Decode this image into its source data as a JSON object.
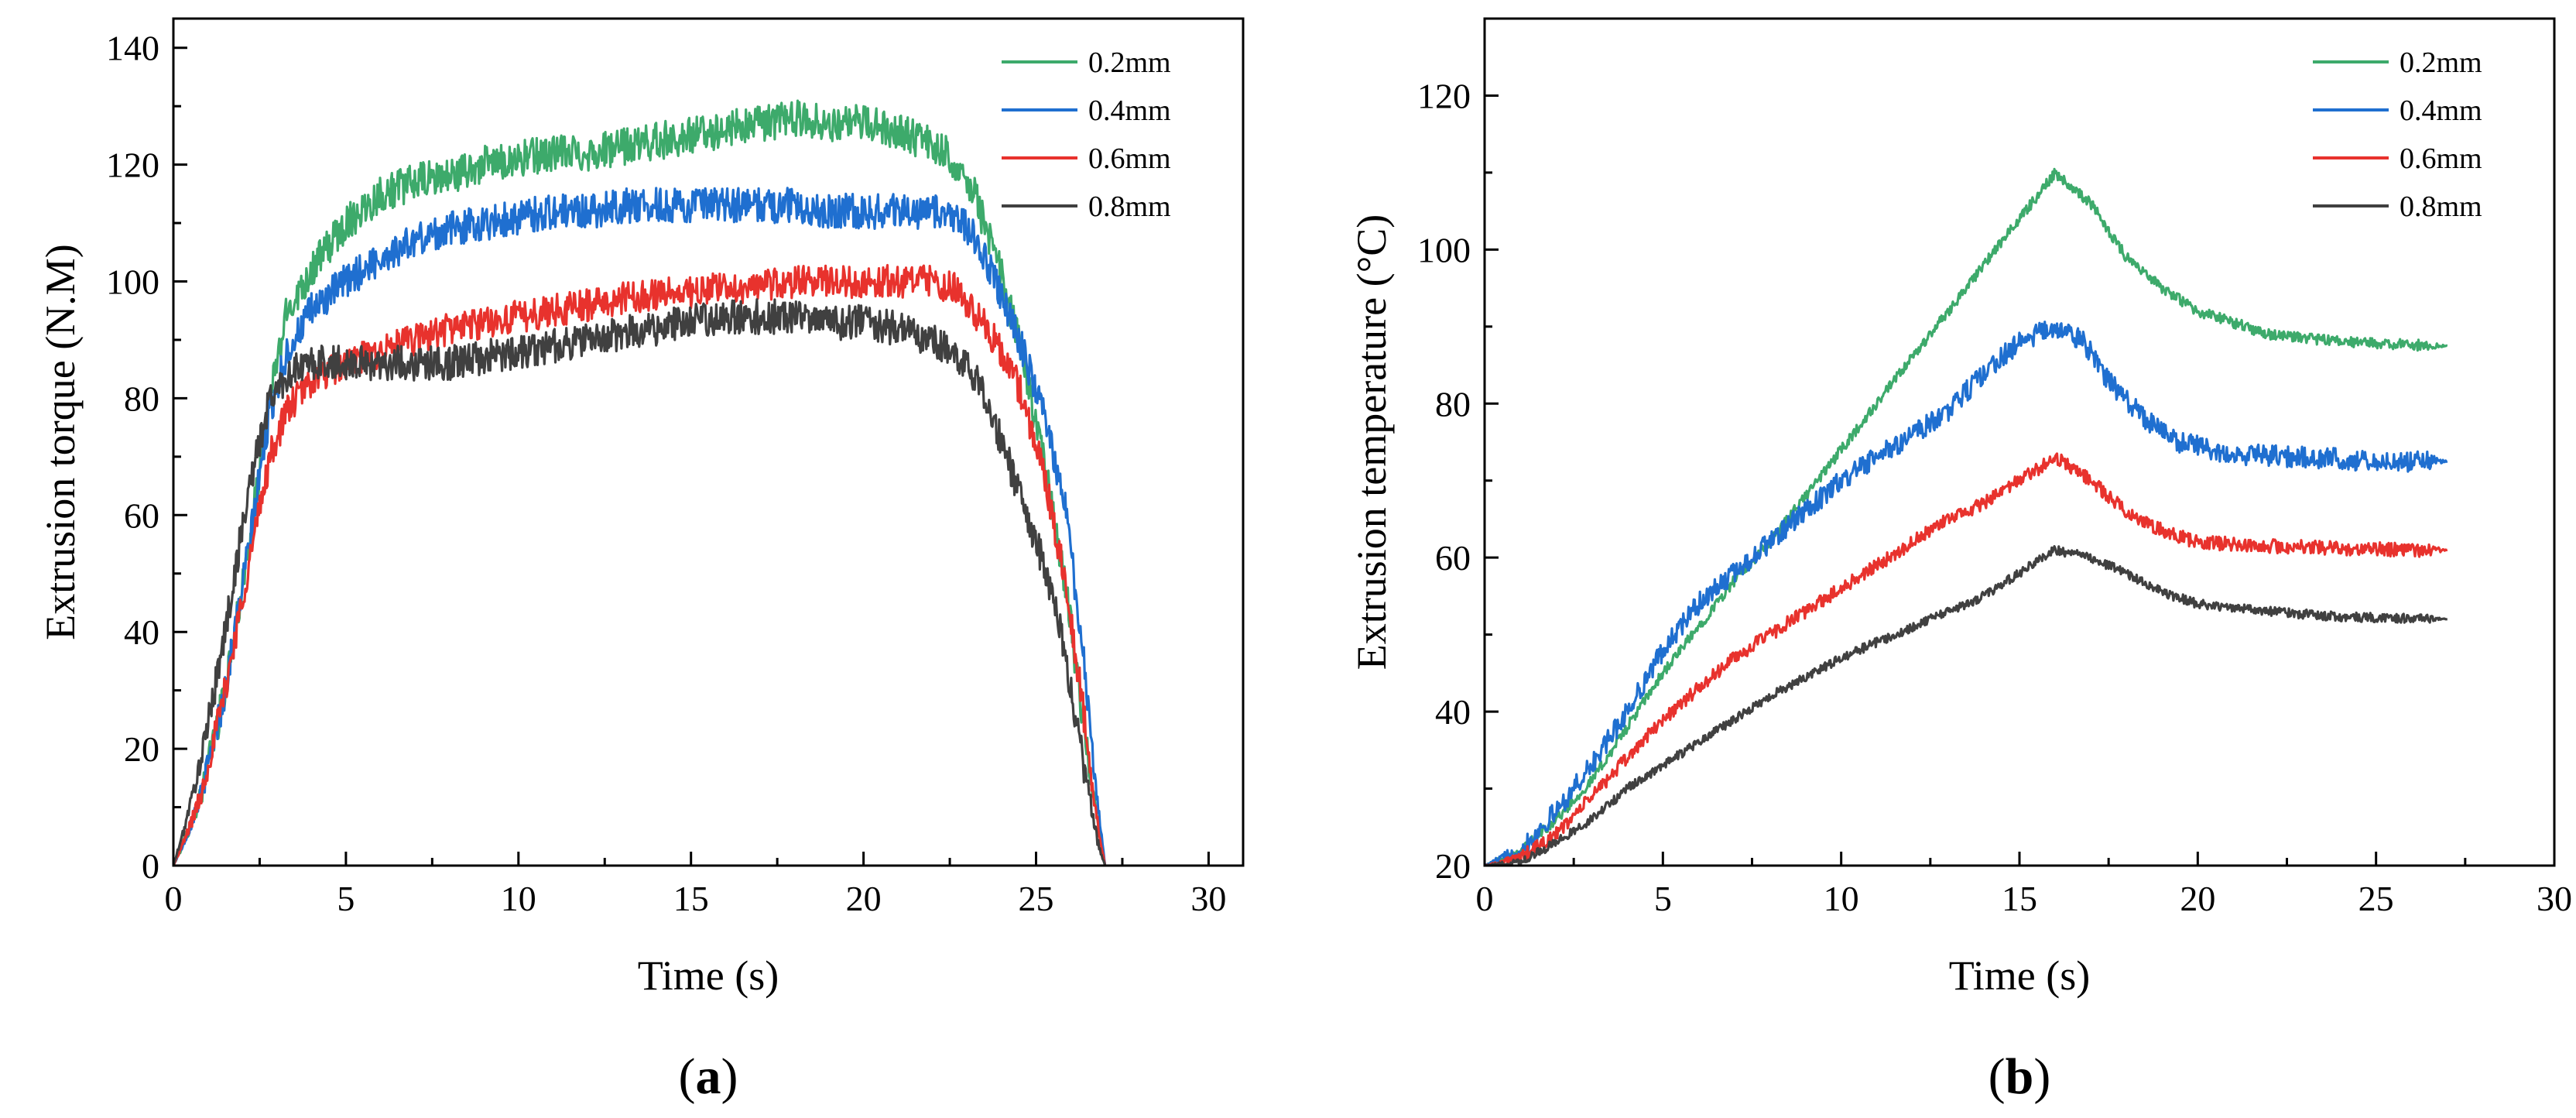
{
  "chart_data": [
    {
      "type": "line",
      "panel": "a",
      "panel_label": {
        "open": "(",
        "letter": "a",
        "close": ")"
      },
      "xlabel": "Time (s)",
      "ylabel": "Extrusion torque (N.M)",
      "xlim": [
        0,
        31
      ],
      "ylim": [
        0,
        145
      ],
      "xticks": [
        0,
        5,
        10,
        15,
        20,
        25,
        30
      ],
      "yticks": [
        0,
        20,
        40,
        60,
        80,
        100,
        120,
        140
      ],
      "legend_position": "top-right",
      "series": [
        {
          "name": "0.2mm",
          "color": "#3daa6b",
          "noise": 3.2,
          "x": [
            0,
            0.3,
            0.8,
            1.5,
            2.2,
            2.8,
            3.3,
            4,
            5,
            6,
            7,
            8,
            9,
            10,
            11,
            12,
            13,
            14,
            15,
            16,
            17,
            18,
            19,
            20,
            21,
            22,
            22.6,
            23.2,
            23.8,
            24.5,
            25.2,
            25.8,
            26.3,
            26.7,
            27
          ],
          "y": [
            0,
            4,
            12,
            30,
            55,
            80,
            95,
            102,
            110,
            115,
            117,
            118,
            120,
            121,
            122,
            122,
            123,
            124,
            125,
            126,
            127,
            128,
            127,
            127,
            126,
            123,
            121,
            115,
            105,
            90,
            70,
            50,
            28,
            10,
            0
          ]
        },
        {
          "name": "0.4mm",
          "color": "#1f6fd0",
          "noise": 3.0,
          "x": [
            0,
            0.3,
            0.8,
            1.5,
            2.2,
            2.8,
            3.3,
            4,
            5,
            6,
            7,
            8,
            9,
            10,
            11,
            12,
            13,
            14,
            15,
            16,
            17,
            18,
            19,
            20,
            21,
            22,
            22.6,
            23.2,
            23.8,
            24.5,
            25.2,
            25.8,
            26.3,
            26.7,
            27
          ],
          "y": [
            0,
            4,
            12,
            30,
            55,
            78,
            88,
            95,
            100,
            104,
            107,
            109,
            110,
            111,
            112,
            112,
            113,
            113,
            113,
            113,
            113,
            113,
            112,
            112,
            112,
            112,
            111,
            108,
            100,
            90,
            78,
            63,
            40,
            15,
            0
          ]
        },
        {
          "name": "0.6mm",
          "color": "#e8322d",
          "noise": 2.8,
          "x": [
            0,
            0.3,
            0.8,
            1.5,
            2.2,
            2.8,
            3.3,
            4,
            5,
            6,
            7,
            8,
            9,
            10,
            11,
            12,
            13,
            14,
            15,
            16,
            17,
            18,
            19,
            20,
            21,
            22,
            22.6,
            23.2,
            23.8,
            24.5,
            25.2,
            25.8,
            26.3,
            26.7,
            27
          ],
          "y": [
            0,
            4,
            12,
            30,
            52,
            70,
            78,
            83,
            86,
            88,
            90,
            92,
            93,
            94,
            95,
            96,
            97,
            98,
            98,
            99,
            99,
            100,
            100,
            100,
            100,
            100,
            99,
            95,
            90,
            82,
            68,
            50,
            30,
            10,
            0
          ]
        },
        {
          "name": "0.8mm",
          "color": "#404040",
          "noise": 3.0,
          "x": [
            0,
            0.3,
            0.8,
            1.5,
            2.2,
            2.8,
            3.3,
            4,
            5,
            6,
            7,
            8,
            9,
            10,
            11,
            12,
            13,
            14,
            15,
            16,
            17,
            18,
            19,
            20,
            21,
            22,
            22.6,
            23.2,
            23.8,
            24.5,
            25.2,
            25.8,
            26.3,
            26.7,
            27
          ],
          "y": [
            0,
            6,
            18,
            40,
            65,
            80,
            84,
            86,
            86,
            86,
            86,
            86,
            87,
            88,
            89,
            90,
            91,
            92,
            93,
            94,
            94,
            94,
            93,
            93,
            92,
            90,
            88,
            84,
            76,
            64,
            52,
            38,
            20,
            6,
            0
          ]
        }
      ]
    },
    {
      "type": "line",
      "panel": "b",
      "panel_label": {
        "open": "(",
        "letter": "b",
        "close": ")"
      },
      "xlabel": "Time (s)",
      "ylabel": "Extrusion temperature (°C)",
      "xlim": [
        0,
        30
      ],
      "ylim": [
        20,
        130
      ],
      "xticks": [
        0,
        5,
        10,
        15,
        20,
        25,
        30
      ],
      "yticks": [
        20,
        40,
        60,
        80,
        100,
        120
      ],
      "legend_position": "top-right",
      "series": [
        {
          "name": "0.2mm",
          "color": "#3daa6b",
          "noise": 0.7,
          "x": [
            0,
            1,
            2,
            3,
            4,
            5,
            6,
            7,
            8,
            9,
            10,
            11,
            12,
            13,
            14,
            15,
            16,
            17,
            18,
            19,
            20,
            22,
            24,
            26,
            27
          ],
          "y": [
            20,
            22,
            26,
            31,
            38,
            45,
            51,
            57,
            62,
            68,
            74,
            80,
            86,
            92,
            98,
            104,
            110,
            106,
            99,
            95,
            92,
            89,
            88,
            87.6,
            87.5
          ]
        },
        {
          "name": "0.4mm",
          "color": "#1f6fd0",
          "noise": 1.4,
          "x": [
            0,
            1,
            2,
            3,
            4,
            5,
            6,
            7,
            8,
            9,
            10,
            11,
            12,
            13,
            14,
            15,
            16,
            16.8,
            17.5,
            18.5,
            19.5,
            21,
            23,
            25,
            27
          ],
          "y": [
            20,
            22,
            27,
            33,
            40,
            48,
            54,
            58,
            62,
            66,
            70,
            73,
            76,
            79,
            84,
            88,
            90,
            88,
            83,
            78,
            75,
            73.5,
            73,
            72.6,
            72.5
          ]
        },
        {
          "name": "0.6mm",
          "color": "#e8322d",
          "noise": 0.9,
          "x": [
            0,
            1,
            2,
            3,
            4,
            5,
            6,
            7,
            8,
            9,
            10,
            11,
            12,
            13,
            14,
            15,
            16,
            17,
            18,
            19,
            20,
            22,
            24,
            26,
            27
          ],
          "y": [
            20,
            21,
            24,
            29,
            34,
            39,
            43,
            47,
            50,
            53,
            56,
            59,
            62,
            65,
            67,
            70,
            73,
            70,
            66,
            63.5,
            62,
            61.5,
            61.2,
            61,
            61
          ]
        },
        {
          "name": "0.8mm",
          "color": "#404040",
          "noise": 0.6,
          "x": [
            0,
            1,
            2,
            3,
            4,
            5,
            6,
            7,
            8,
            9,
            10,
            11,
            12,
            13,
            14,
            15,
            16,
            17,
            18,
            19,
            20,
            22,
            24,
            26,
            27
          ],
          "y": [
            20,
            20.5,
            23,
            26,
            30,
            33,
            36,
            39,
            42,
            44.5,
            47,
            49,
            51,
            53,
            55,
            58,
            61,
            60,
            58,
            55.5,
            54,
            53,
            52.3,
            52.1,
            52
          ]
        }
      ]
    }
  ]
}
